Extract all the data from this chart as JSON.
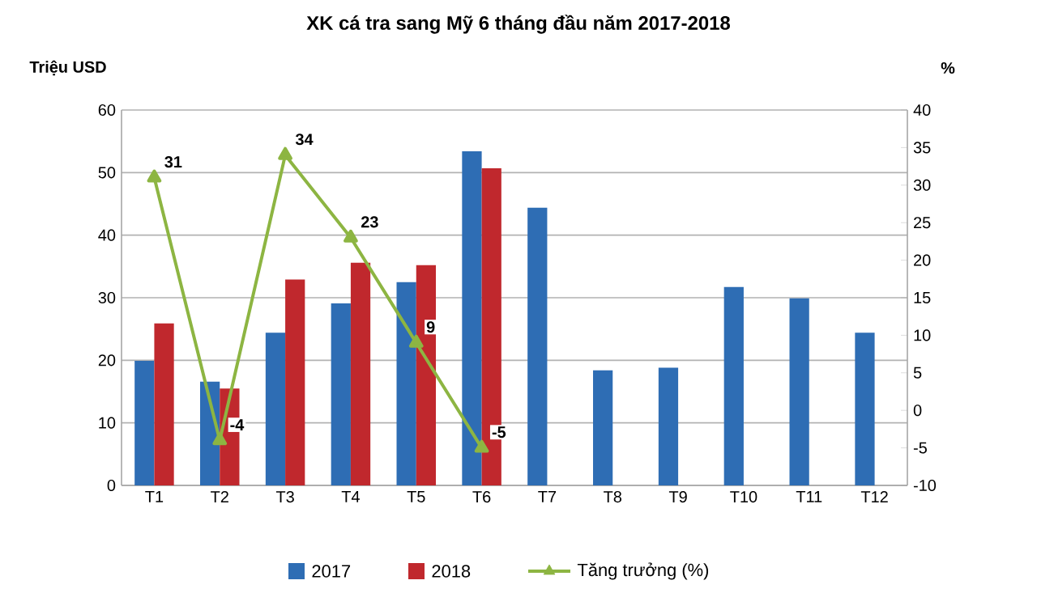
{
  "chart_data": {
    "type": "bar",
    "title": "XK cá tra sang Mỹ 6 tháng đầu năm 2017-2018",
    "ylabel": "Triệu USD",
    "y2label": "%",
    "categories": [
      "T1",
      "T2",
      "T3",
      "T4",
      "T5",
      "T6",
      "T7",
      "T8",
      "T9",
      "T10",
      "T11",
      "T12"
    ],
    "series": [
      {
        "name": "2017",
        "color": "#2e6db4",
        "values": [
          19.9,
          16.6,
          24.4,
          29.1,
          32.5,
          53.4,
          44.4,
          18.4,
          18.8,
          31.7,
          29.9,
          24.4
        ]
      },
      {
        "name": "2018",
        "color": "#c0282d",
        "values": [
          25.9,
          15.5,
          32.9,
          35.6,
          35.2,
          50.7,
          null,
          null,
          null,
          null,
          null,
          null
        ]
      },
      {
        "name": "Tăng trưởng (%)",
        "type": "line",
        "axis": "y2",
        "color": "#8db542",
        "marker": "triangle",
        "values": [
          31,
          -4,
          34,
          23,
          9,
          -5,
          null,
          null,
          null,
          null,
          null,
          null
        ],
        "value_labels": [
          "31",
          "-4",
          "34",
          "23",
          "9",
          "-5",
          null,
          null,
          null,
          null,
          null,
          null
        ]
      }
    ],
    "ylim": [
      0,
      60
    ],
    "yticks": [
      0,
      10,
      20,
      30,
      40,
      50,
      60
    ],
    "y2lim": [
      -10,
      40
    ],
    "y2ticks": [
      -10,
      -5,
      0,
      5,
      10,
      15,
      20,
      25,
      30,
      35,
      40
    ],
    "grid": "y",
    "legend": "bottom"
  }
}
